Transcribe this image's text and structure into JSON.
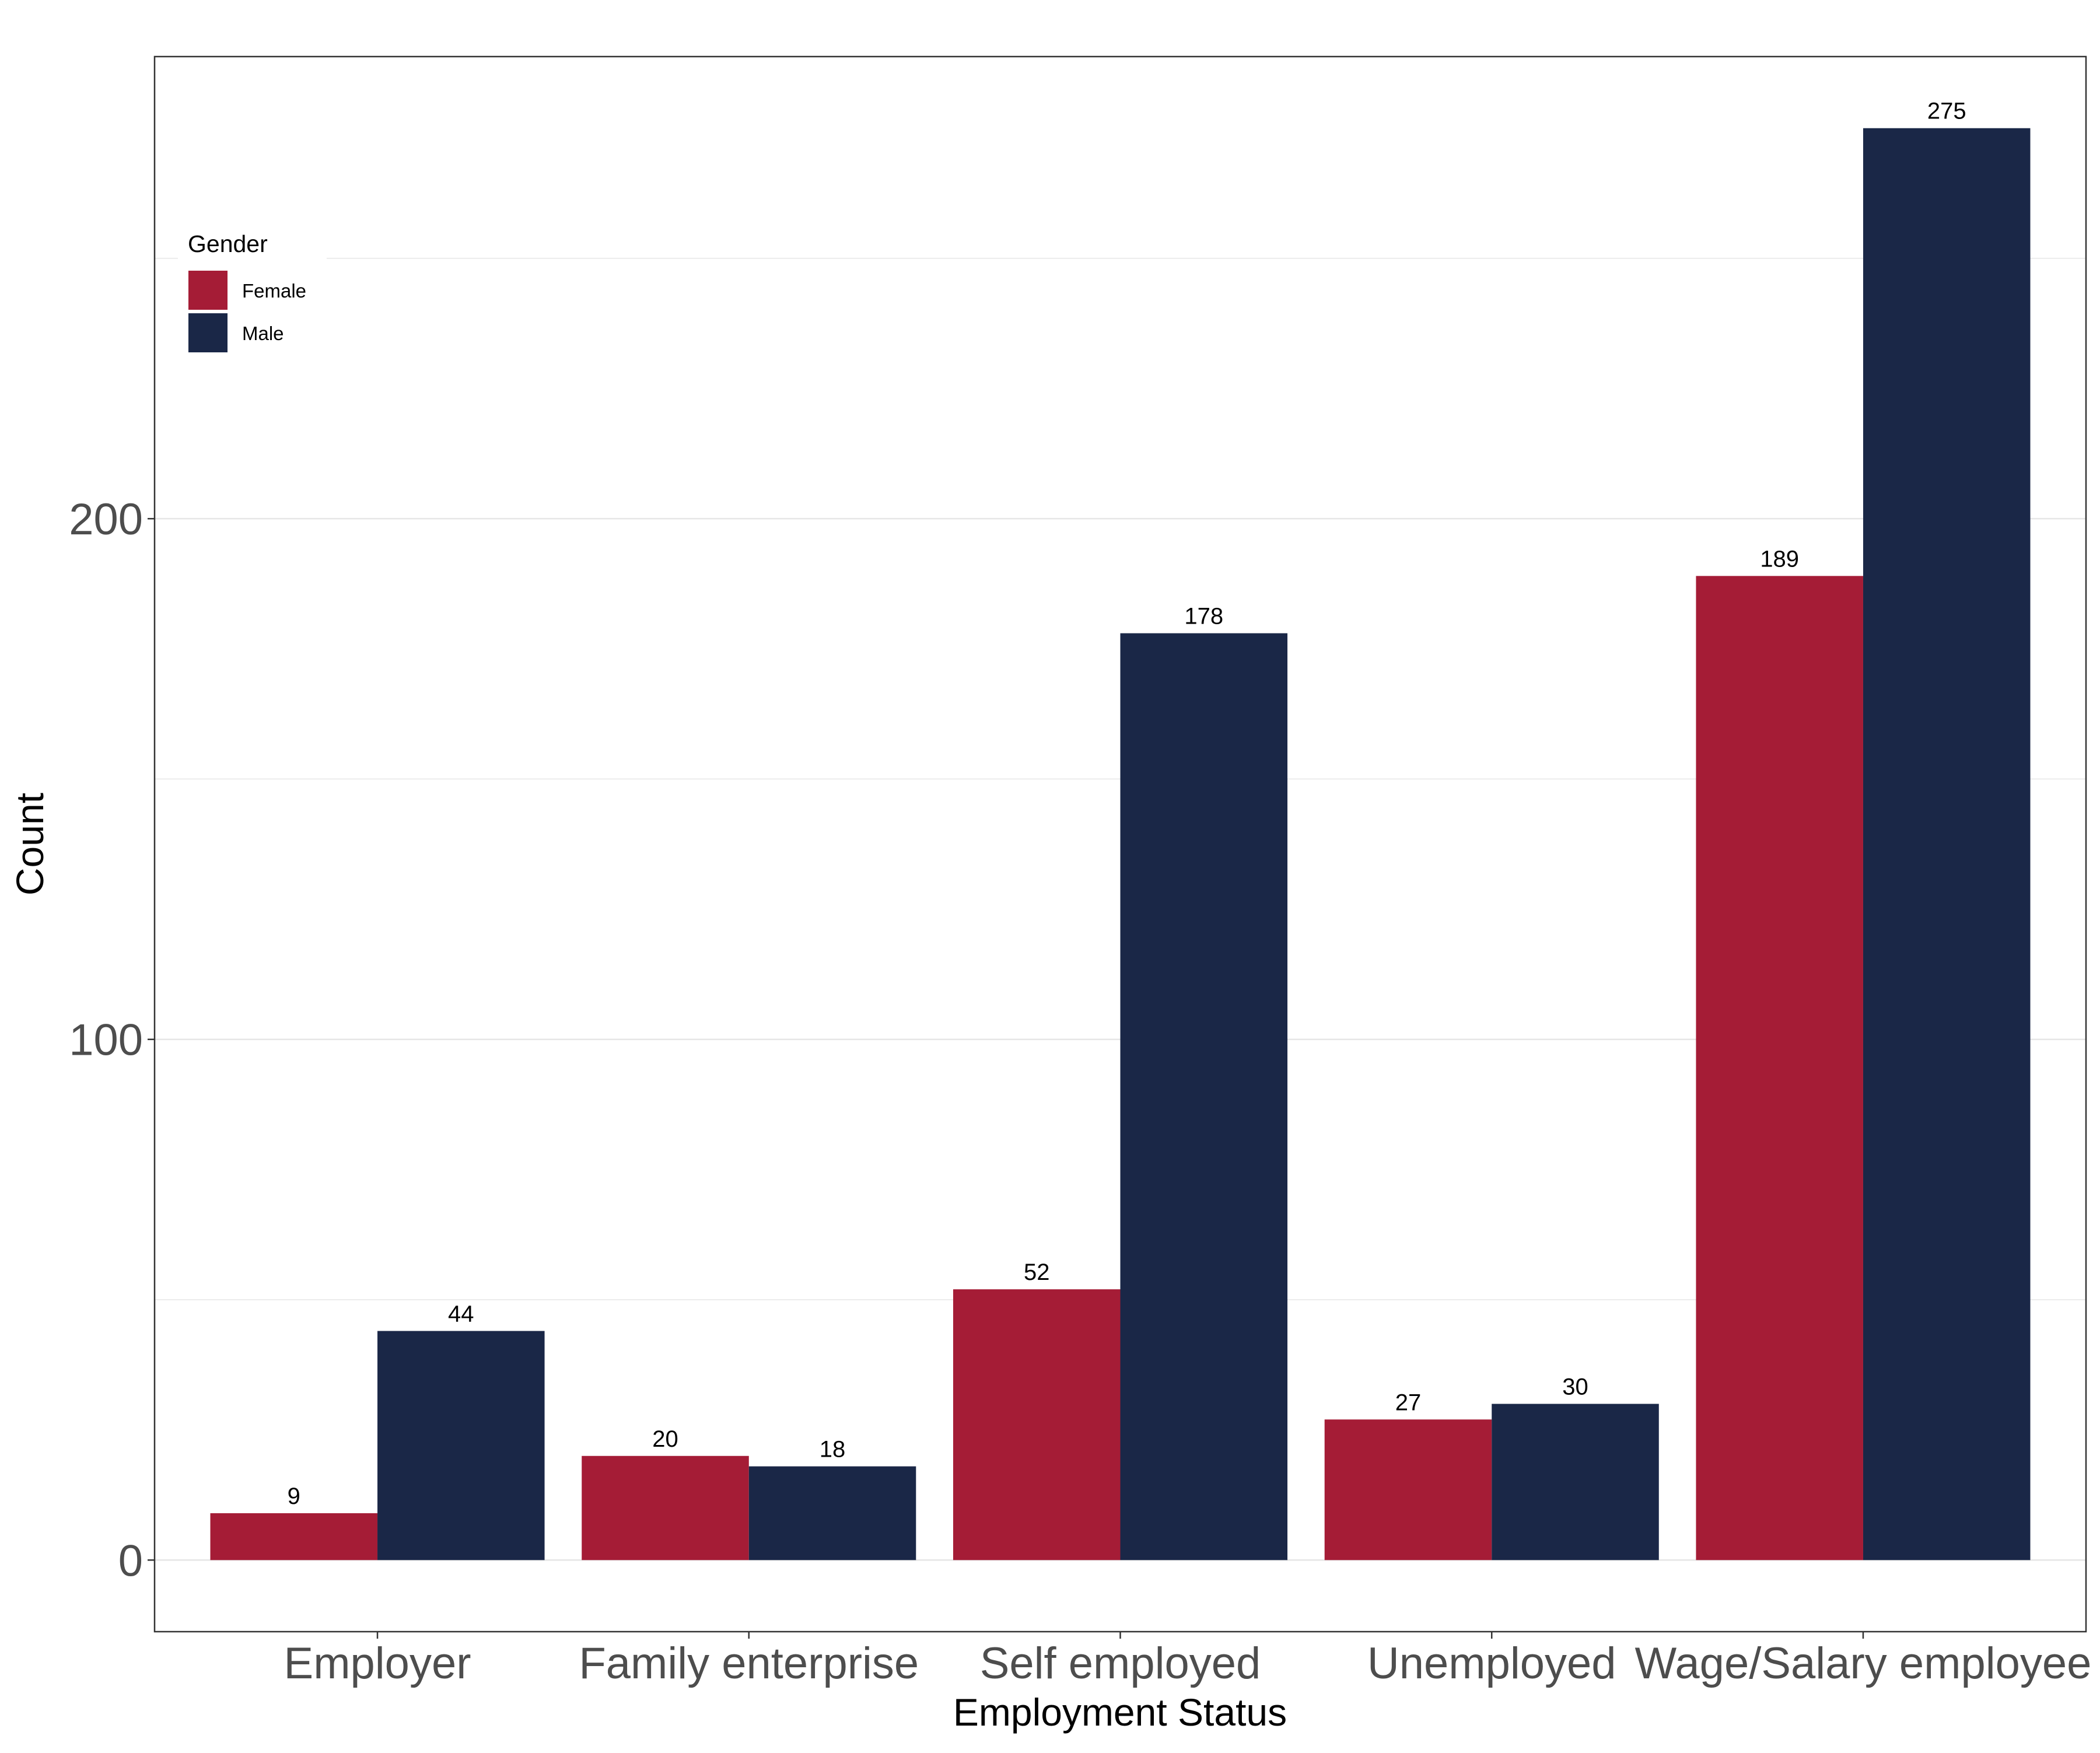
{
  "chart_data": {
    "type": "bar",
    "title": "",
    "xlabel": "Employment Status",
    "ylabel": "Count",
    "categories": [
      "Employer",
      "Family enterprise",
      "Self employed",
      "Unemployed",
      "Wage/Salary employee"
    ],
    "series": [
      {
        "name": "Female",
        "color": "#A51C36",
        "values": [
          9,
          20,
          52,
          27,
          189
        ]
      },
      {
        "name": "Male",
        "color": "#1A2747",
        "values": [
          44,
          18,
          178,
          30,
          275
        ]
      }
    ],
    "ylim": [
      -13.75,
      288.75
    ],
    "yticks": [
      0,
      100,
      200
    ],
    "grid": true,
    "legend": {
      "title": "Gender",
      "placement": "top-left inside"
    }
  }
}
